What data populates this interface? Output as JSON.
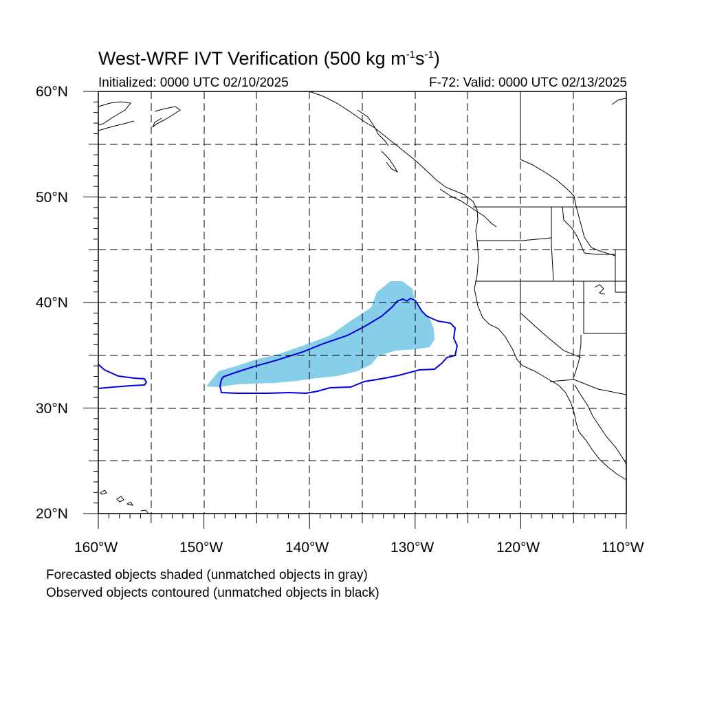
{
  "header": {
    "title_prefix": "West-WRF IVT Verification (500 kg m",
    "title_exp1": "-1",
    "title_mid": "s",
    "title_exp2": "-1",
    "title_suffix": ")",
    "initialized": "Initialized: 0000 UTC 02/10/2025",
    "valid": "F-72: Valid: 0000 UTC 02/13/2025"
  },
  "axes": {
    "lat_labels": [
      "60°N",
      "50°N",
      "40°N",
      "30°N",
      "20°N"
    ],
    "lon_labels": [
      "160°W",
      "150°W",
      "140°W",
      "130°W",
      "120°W",
      "110°W"
    ]
  },
  "legend_notes": [
    "Forecasted objects shaded (unmatched objects in gray)",
    "Observed objects contoured (unmatched objects in black)"
  ],
  "colors": {
    "forecast_fill": "#87ceeb",
    "observed_contour": "#0000dd",
    "coastline": "#000000",
    "grid": "#000000"
  }
}
